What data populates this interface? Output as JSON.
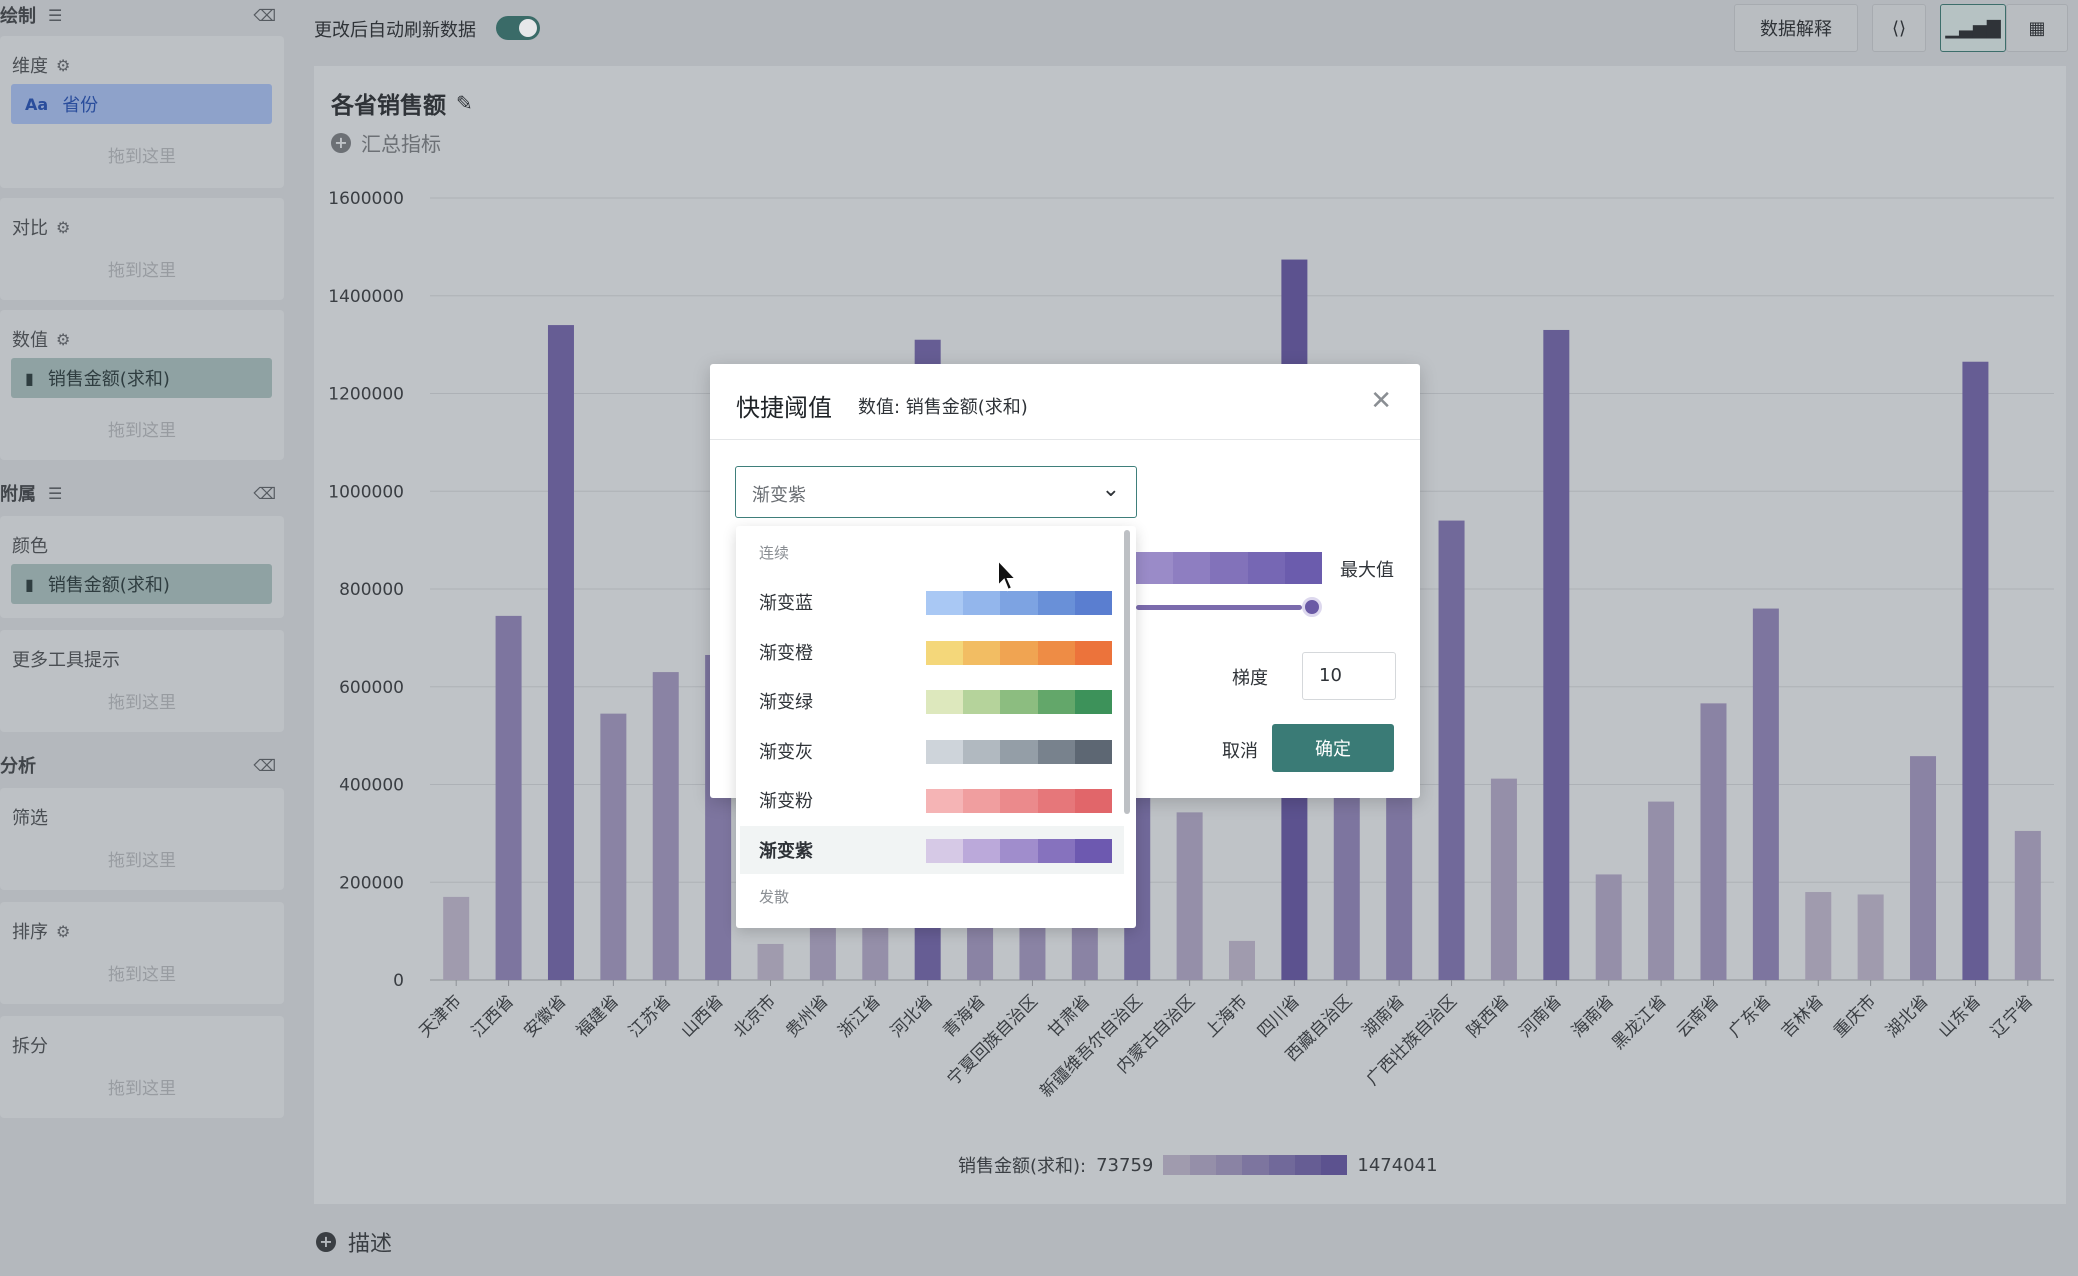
{
  "sidebar": {
    "draw_header": "绘制",
    "attach_header": "附属",
    "analysis_header": "分析",
    "drop_hint": "拖到这里",
    "dimension": {
      "title": "维度",
      "pill": "省份",
      "pill_icon": "Aa"
    },
    "compare": {
      "title": "对比"
    },
    "value": {
      "title": "数值",
      "pill": "销售金额(求和)"
    },
    "color": {
      "title": "颜色",
      "pill": "销售金额(求和)"
    },
    "tooltip": {
      "title": "更多工具提示"
    },
    "filter": {
      "title": "筛选"
    },
    "sort": {
      "title": "排序"
    },
    "split": {
      "title": "拆分"
    }
  },
  "topbar": {
    "auto_refresh_label": "更改后自动刷新数据",
    "auto_refresh_on": true,
    "explain_button": "数据解释"
  },
  "chart_card": {
    "title": "各省销售额",
    "summary_label": "汇总指标",
    "describe_label": "描述",
    "legend": {
      "label": "销售金额(求和):",
      "min": "73759",
      "max": "1474041"
    }
  },
  "chart_data": {
    "type": "bar",
    "title": "各省销售额",
    "ylim": [
      0,
      1600000
    ],
    "yticks": [
      "0",
      "200000",
      "400000",
      "600000",
      "800000",
      "1000000",
      "1200000",
      "1400000",
      "1600000"
    ],
    "grid": true,
    "categories": [
      "天津市",
      "江西省",
      "安徽省",
      "福建省",
      "江苏省",
      "山西省",
      "北京市",
      "贵州省",
      "浙江省",
      "河北省",
      "青海省",
      "宁夏回族自治区",
      "甘肃省",
      "新疆维吾尔自治区",
      "内蒙古自治区",
      "上海市",
      "四川省",
      "西藏自治区",
      "湖南省",
      "广西壮族自治区",
      "陕西省",
      "河南省",
      "海南省",
      "黑龙江省",
      "云南省",
      "广东省",
      "吉林省",
      "重庆市",
      "湖北省",
      "山东省",
      "辽宁省"
    ],
    "values": [
      170000,
      745000,
      1340000,
      545000,
      630000,
      665000,
      73759,
      390000,
      420000,
      1310000,
      500000,
      520000,
      560000,
      900000,
      343000,
      80000,
      1474041,
      680000,
      720000,
      940000,
      412000,
      1330000,
      216000,
      365000,
      566000,
      760000,
      180000,
      175000,
      458000,
      1265000,
      305000
    ],
    "color_scale": [
      "#a09bae",
      "#958fa9",
      "#8a83a4",
      "#7d759f",
      "#71699a",
      "#665d94",
      "#5c528f"
    ],
    "legend_position": "bottom"
  },
  "modal": {
    "title": "快捷阈值",
    "subtitle": "数值: 销售金额(求和)",
    "select_value": "渐变紫",
    "max_label": "最大值",
    "gradient_label": "梯度",
    "gradient_value": "10",
    "cancel": "取消",
    "confirm": "确定",
    "preview_colors": [
      "#9a8bc8",
      "#8e7ec1",
      "#8272ba",
      "#7667b4",
      "#6b5cad"
    ],
    "slider_fraction": 1.0
  },
  "dropdown": {
    "group_continuous": "连续",
    "group_diverging": "发散",
    "options": [
      {
        "label": "渐变蓝",
        "colors": [
          "#a9c8f4",
          "#93b6ec",
          "#7da3e2",
          "#6990d8",
          "#5a7ed0"
        ],
        "selected": false
      },
      {
        "label": "渐变橙",
        "colors": [
          "#f4d77a",
          "#f2bd63",
          "#f0a452",
          "#ee8c45",
          "#ec733b"
        ],
        "selected": false
      },
      {
        "label": "渐变绿",
        "colors": [
          "#dde8bd",
          "#b5d39b",
          "#8cbd80",
          "#63a76a",
          "#3d925a"
        ],
        "selected": false
      },
      {
        "label": "渐变灰",
        "colors": [
          "#ced4da",
          "#b1b9c0",
          "#949ea7",
          "#78828d",
          "#5d6773"
        ],
        "selected": false
      },
      {
        "label": "渐变粉",
        "colors": [
          "#f5b4b5",
          "#f09e9f",
          "#eb8a8c",
          "#e6777a",
          "#e1666a"
        ],
        "selected": false
      },
      {
        "label": "渐变紫",
        "colors": [
          "#d6c9e6",
          "#bba9da",
          "#a08dcc",
          "#8672be",
          "#6d59b0"
        ],
        "selected": true
      }
    ]
  }
}
